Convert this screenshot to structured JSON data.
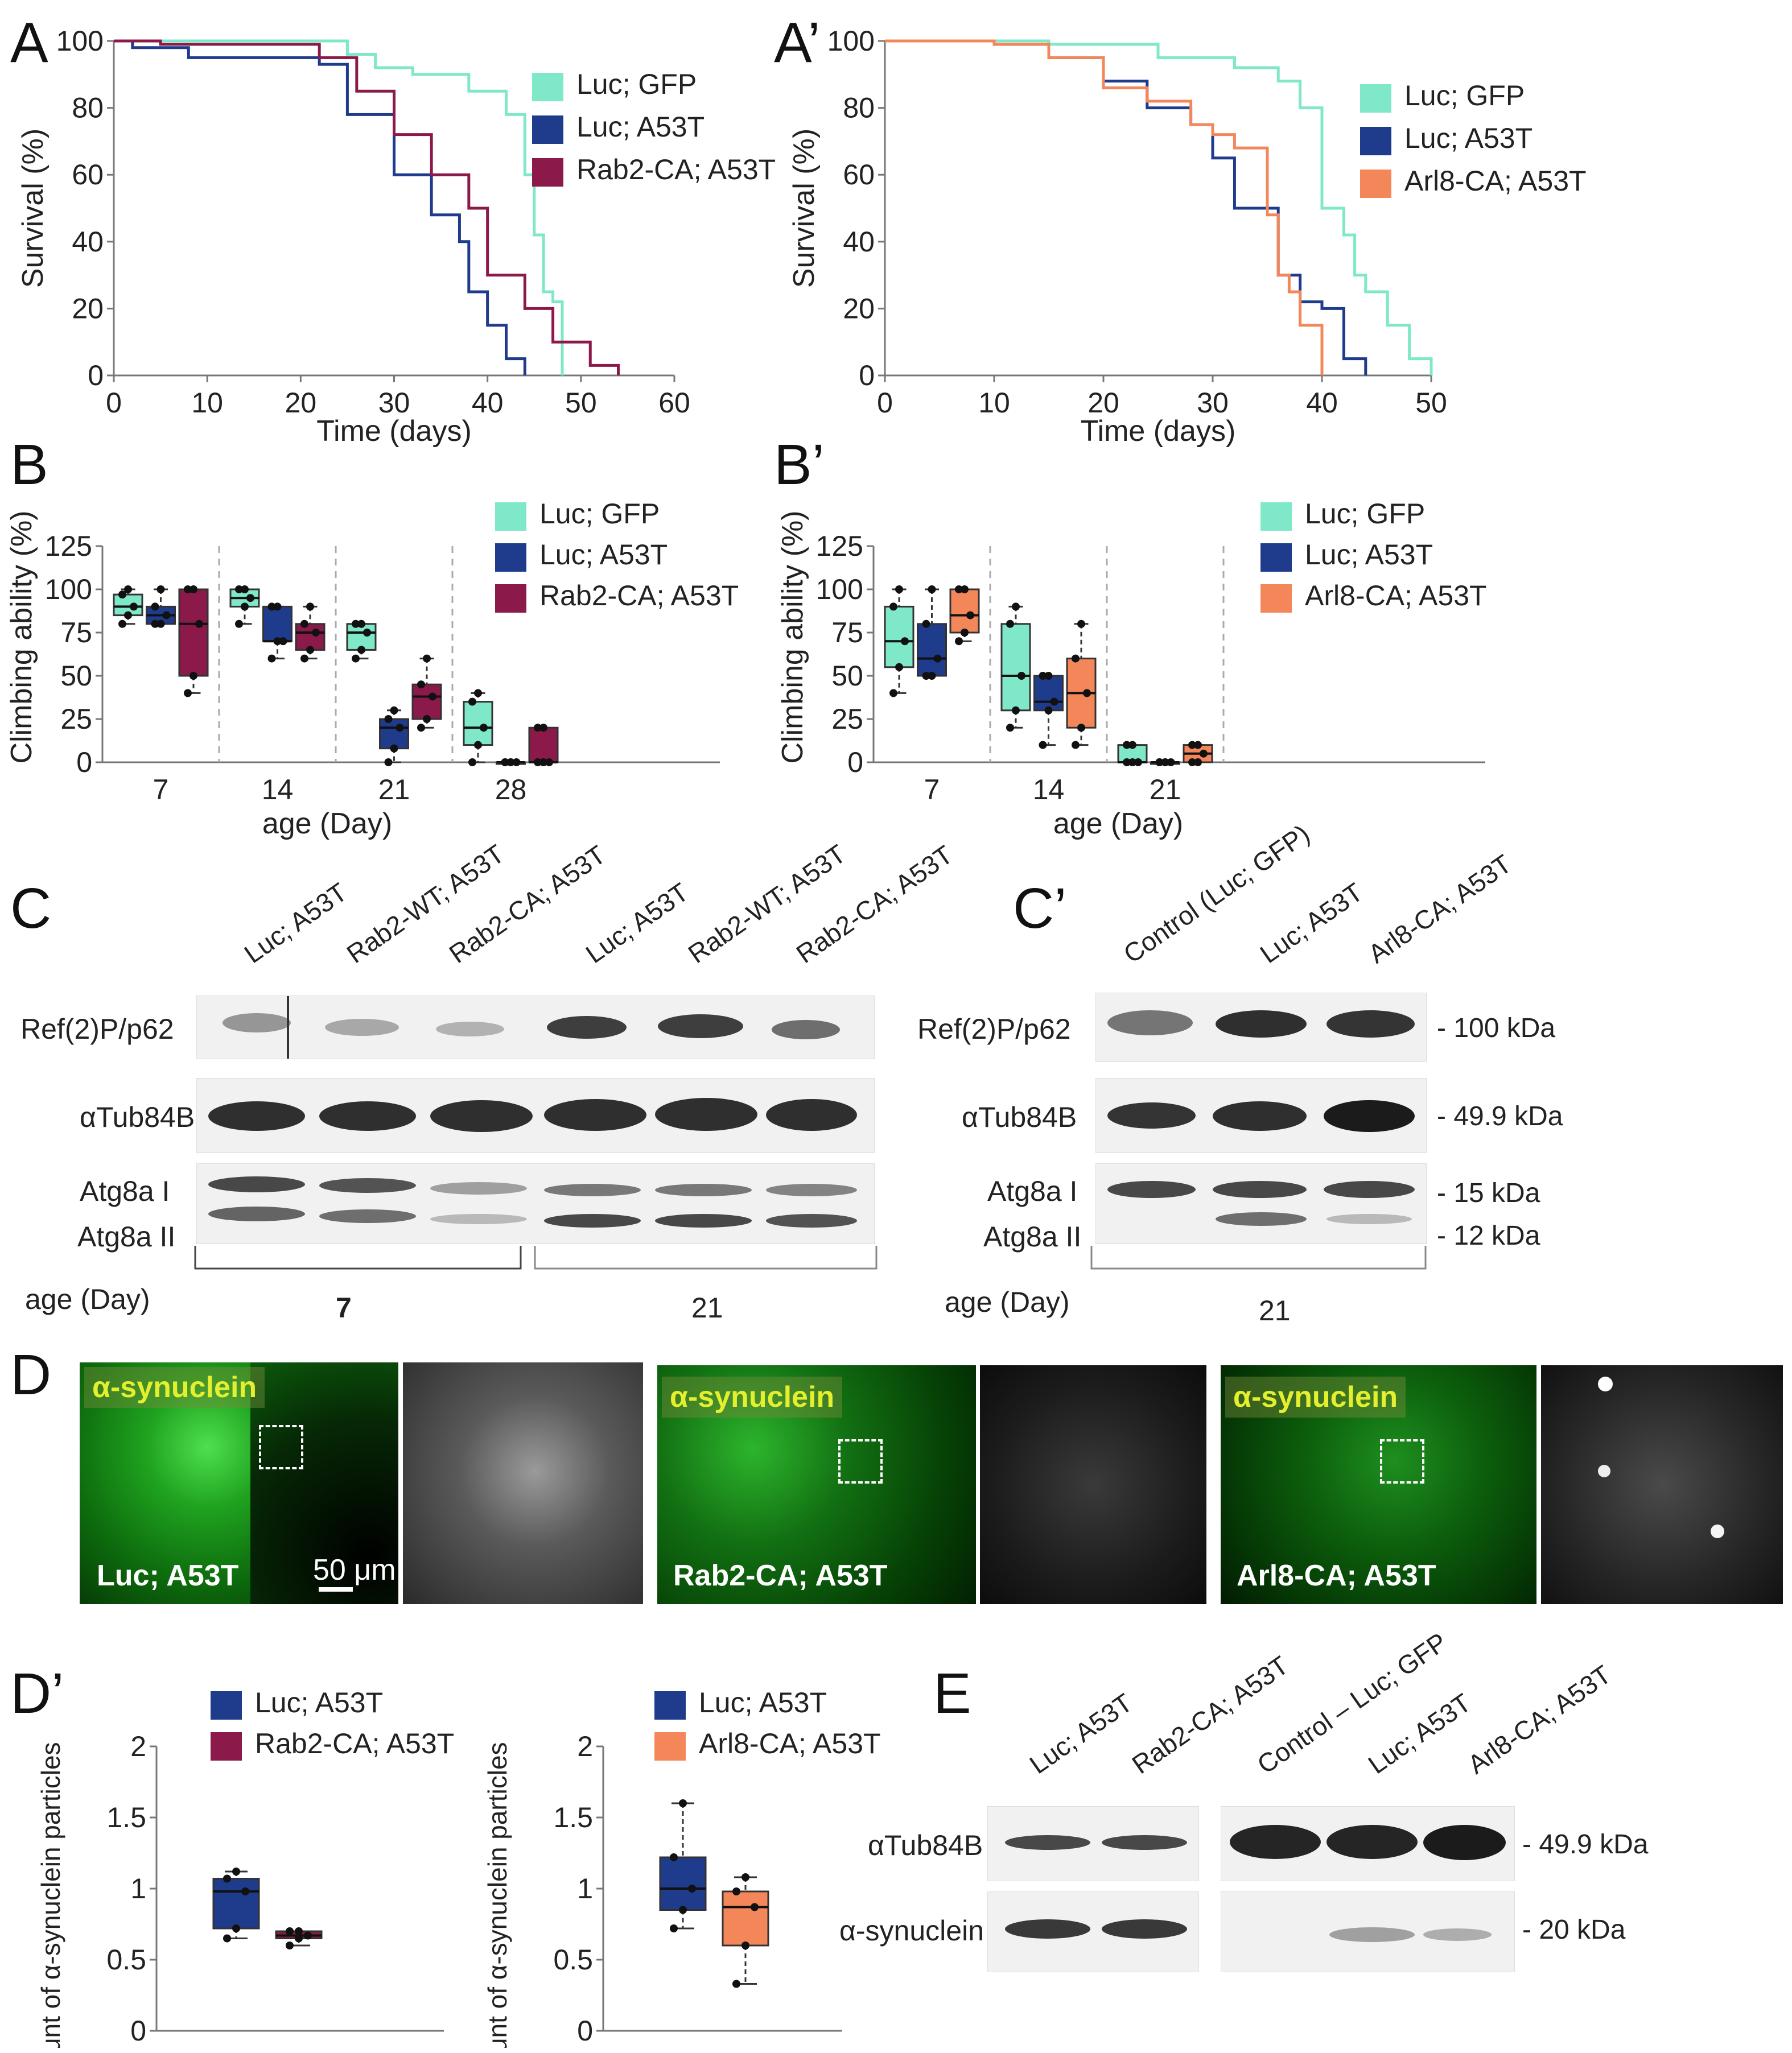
{
  "panels": {
    "A": "A",
    "A2": "A’",
    "B": "B",
    "B2": "B’",
    "C": "C",
    "C2": "C’",
    "D": "D",
    "D2": "D’",
    "E": "E"
  },
  "colors": {
    "gfp": "#7ee8c9",
    "luc": "#1f3b8c",
    "rab2": "#8b1a4a",
    "arl8": "#f4875a"
  },
  "chart_data": [
    {
      "id": "A",
      "type": "line",
      "xlabel": "Time (days)",
      "ylabel": "Survival (%)",
      "xlim": [
        0,
        60
      ],
      "ylim": [
        0,
        100
      ],
      "xticks": [
        "0",
        "10",
        "20",
        "30",
        "40",
        "50",
        "60"
      ],
      "yticks": [
        "0",
        "20",
        "40",
        "60",
        "80",
        "100"
      ],
      "legend_position": "top-right",
      "series": [
        {
          "name": "Luc; GFP",
          "color": "#7ee8c9",
          "x": [
            0,
            22,
            25,
            28,
            32,
            38,
            42,
            44,
            45,
            46,
            47,
            48
          ],
          "y": [
            100,
            100,
            96,
            92,
            90,
            85,
            78,
            60,
            42,
            25,
            22,
            0
          ]
        },
        {
          "name": "Luc; A53T",
          "color": "#1f3b8c",
          "x": [
            0,
            2,
            8,
            22,
            25,
            30,
            34,
            37,
            38,
            40,
            42,
            44
          ],
          "y": [
            100,
            98,
            95,
            93,
            78,
            60,
            48,
            40,
            25,
            15,
            5,
            0
          ]
        },
        {
          "name": "Rab2-CA; A53T",
          "color": "#8b1a4a",
          "x": [
            0,
            5,
            22,
            26,
            30,
            34,
            38,
            40,
            44,
            47,
            51,
            54
          ],
          "y": [
            100,
            99,
            95,
            85,
            72,
            60,
            50,
            30,
            20,
            10,
            3,
            0
          ]
        }
      ]
    },
    {
      "id": "A2",
      "type": "line",
      "xlabel": "Time (days)",
      "ylabel": "Survival (%)",
      "xlim": [
        0,
        50
      ],
      "ylim": [
        0,
        100
      ],
      "xticks": [
        "0",
        "10",
        "20",
        "30",
        "40",
        "50"
      ],
      "yticks": [
        "0",
        "20",
        "40",
        "60",
        "80",
        "100"
      ],
      "legend_position": "top-right",
      "series": [
        {
          "name": "Luc; GFP",
          "color": "#7ee8c9",
          "x": [
            0,
            15,
            25,
            32,
            36,
            38,
            40,
            42,
            43,
            44,
            46,
            48,
            50
          ],
          "y": [
            100,
            99,
            95,
            92,
            88,
            80,
            50,
            42,
            30,
            25,
            15,
            5,
            0
          ]
        },
        {
          "name": "Luc; A53T",
          "color": "#1f3b8c",
          "x": [
            0,
            10,
            15,
            20,
            24,
            28,
            30,
            32,
            36,
            38,
            40,
            42,
            44
          ],
          "y": [
            100,
            99,
            95,
            88,
            80,
            75,
            65,
            50,
            30,
            22,
            20,
            5,
            0
          ]
        },
        {
          "name": "Arl8-CA; A53T",
          "color": "#f4875a",
          "x": [
            0,
            10,
            15,
            20,
            24,
            28,
            30,
            32,
            35,
            36,
            37,
            38,
            40
          ],
          "y": [
            100,
            99,
            95,
            86,
            82,
            75,
            72,
            68,
            48,
            30,
            25,
            15,
            0
          ]
        }
      ]
    },
    {
      "id": "B",
      "type": "box",
      "xlabel": "age (Day)",
      "ylabel": "Climbing ability (%)",
      "ylim": [
        0,
        125
      ],
      "yticks": [
        "0",
        "25",
        "50",
        "75",
        "100",
        "125"
      ],
      "categories": [
        "7",
        "14",
        "21",
        "28"
      ],
      "legend_position": "top-right",
      "series": [
        {
          "name": "Luc; GFP",
          "color": "#7ee8c9",
          "boxes": [
            [
              80,
              85,
              90,
              97,
              100
            ],
            [
              80,
              90,
              95,
              100,
              100
            ],
            [
              60,
              65,
              75,
              80,
              80
            ],
            [
              0,
              10,
              20,
              35,
              40
            ]
          ]
        },
        {
          "name": "Luc; A53T",
          "color": "#1f3b8c",
          "boxes": [
            [
              80,
              80,
              85,
              90,
              100
            ],
            [
              60,
              70,
              70,
              90,
              90
            ],
            [
              0,
              8,
              20,
              25,
              30
            ],
            [
              0,
              0,
              0,
              0,
              0
            ]
          ]
        },
        {
          "name": "Rab2-CA; A53T",
          "color": "#8b1a4a",
          "boxes": [
            [
              40,
              50,
              80,
              100,
              100
            ],
            [
              60,
              65,
              75,
              80,
              90
            ],
            [
              20,
              25,
              38,
              45,
              60
            ],
            [
              0,
              0,
              0,
              20,
              20
            ]
          ]
        }
      ]
    },
    {
      "id": "B2",
      "type": "box",
      "xlabel": "age (Day)",
      "ylabel": "Climbing ability (%)",
      "ylim": [
        0,
        125
      ],
      "yticks": [
        "0",
        "25",
        "50",
        "75",
        "100",
        "125"
      ],
      "categories": [
        "7",
        "14",
        "21"
      ],
      "legend_position": "top-right",
      "series": [
        {
          "name": "Luc; GFP",
          "color": "#7ee8c9",
          "boxes": [
            [
              40,
              55,
              70,
              90,
              100
            ],
            [
              20,
              30,
              50,
              80,
              90
            ],
            [
              0,
              0,
              0,
              10,
              10
            ]
          ]
        },
        {
          "name": "Luc; A53T",
          "color": "#1f3b8c",
          "boxes": [
            [
              50,
              50,
              60,
              80,
              100
            ],
            [
              10,
              30,
              35,
              50,
              50
            ],
            [
              0,
              0,
              0,
              0,
              0
            ]
          ]
        },
        {
          "name": "Arl8-CA; A53T",
          "color": "#f4875a",
          "boxes": [
            [
              70,
              75,
              85,
              100,
              100
            ],
            [
              10,
              20,
              40,
              60,
              80
            ],
            [
              0,
              0,
              5,
              10,
              10
            ]
          ]
        }
      ]
    },
    {
      "id": "D2a",
      "type": "box",
      "ylabel": "amount of α-synuclein particles",
      "ylim": [
        0,
        2
      ],
      "yticks": [
        "0",
        "0.5",
        "1",
        "1.5",
        "2"
      ],
      "legend_position": "top",
      "series": [
        {
          "name": "Luc; A53T",
          "color": "#1f3b8c",
          "box": [
            0.65,
            0.72,
            0.98,
            1.07,
            1.12
          ]
        },
        {
          "name": "Rab2-CA; A53T",
          "color": "#8b1a4a",
          "box": [
            0.6,
            0.65,
            0.67,
            0.7,
            0.7
          ]
        }
      ]
    },
    {
      "id": "D2b",
      "type": "box",
      "ylabel": "amount of α-synuclein particles",
      "ylim": [
        0,
        2
      ],
      "yticks": [
        "0",
        "0.5",
        "1",
        "1.5",
        "2"
      ],
      "legend_position": "top",
      "series": [
        {
          "name": "Luc; A53T",
          "color": "#1f3b8c",
          "box": [
            0.72,
            0.85,
            1.0,
            1.22,
            1.6
          ]
        },
        {
          "name": "Arl8-CA; A53T",
          "color": "#f4875a",
          "box": [
            0.33,
            0.6,
            0.87,
            0.98,
            1.08
          ]
        }
      ]
    }
  ],
  "blotC": {
    "lanes": [
      "Luc; A53T",
      "Rab2-WT; A53T",
      "Rab2-CA; A53T",
      "Luc; A53T",
      "Rab2-WT; A53T",
      "Rab2-CA; A53T"
    ],
    "rows": [
      "Ref(2)P/p62",
      "αTub84B",
      "Atg8a I",
      "Atg8a II"
    ],
    "age_label": "age (Day)",
    "age_groups": [
      "7",
      "21"
    ]
  },
  "blotC2": {
    "lanes": [
      "Control (Luc; GFP)",
      "Luc; A53T",
      "Arl8-CA; A53T"
    ],
    "rows": [
      "Ref(2)P/p62",
      "αTub84B",
      "Atg8a I",
      "Atg8a II"
    ],
    "markers": [
      "- 100 kDa",
      "- 49.9 kDa",
      "- 15 kDa",
      "- 12 kDa"
    ],
    "age_label": "age (Day)",
    "age_group": "21"
  },
  "micro": {
    "tag": "α-synuclein",
    "labels": [
      "Luc; A53T",
      "Rab2-CA; A53T",
      "Arl8-CA; A53T"
    ],
    "scale": "50 μm"
  },
  "blotE": {
    "lanes": [
      "Luc; A53T",
      "Rab2-CA; A53T",
      "Control – Luc; GFP",
      "Luc; A53T",
      "Arl8-CA; A53T"
    ],
    "rows": [
      "αTub84B",
      "α-synuclein"
    ],
    "markers": [
      "- 49.9 kDa",
      "- 20 kDa"
    ]
  }
}
